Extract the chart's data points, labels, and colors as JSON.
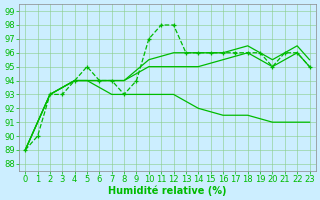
{
  "background_color": "#cceeff",
  "grid_color": "#88cc88",
  "line_color": "#00bb00",
  "xlabel": "Humidité relative (%)",
  "xlabel_fontsize": 7,
  "tick_fontsize": 6,
  "xlim": [
    -0.5,
    23.5
  ],
  "ylim": [
    87.5,
    99.5
  ],
  "yticks": [
    88,
    89,
    90,
    91,
    92,
    93,
    94,
    95,
    96,
    97,
    98,
    99
  ],
  "xticks": [
    0,
    1,
    2,
    3,
    4,
    5,
    6,
    7,
    8,
    9,
    10,
    11,
    12,
    13,
    14,
    15,
    16,
    17,
    18,
    19,
    20,
    21,
    22,
    23
  ],
  "series": [
    {
      "x": [
        0,
        1,
        2,
        3,
        4,
        5,
        6,
        7,
        8,
        9,
        10,
        11,
        12,
        13,
        14,
        15,
        16,
        17,
        18,
        19,
        20,
        21,
        22,
        23
      ],
      "y": [
        89,
        90,
        93,
        93,
        94,
        95,
        94,
        94,
        93,
        94,
        97,
        98,
        98,
        96,
        96,
        96,
        96,
        96,
        96,
        96,
        95,
        96,
        96,
        95
      ],
      "marker": "+",
      "linestyle": "--"
    },
    {
      "x": [
        0,
        2,
        4,
        6,
        8,
        10,
        12,
        14,
        16,
        18,
        20,
        22,
        23
      ],
      "y": [
        89,
        93,
        94,
        94,
        94,
        95,
        95,
        95,
        95.5,
        96,
        95,
        96,
        95
      ],
      "marker": null,
      "linestyle": "-"
    },
    {
      "x": [
        0,
        2,
        4,
        6,
        8,
        10,
        12,
        14,
        16,
        18,
        20,
        22,
        23
      ],
      "y": [
        89,
        93,
        94,
        94,
        94,
        95.5,
        96,
        96,
        96,
        96.5,
        95.5,
        96.5,
        95.5
      ],
      "marker": null,
      "linestyle": "-"
    },
    {
      "x": [
        0,
        2,
        4,
        5,
        6,
        7,
        8,
        10,
        12,
        14,
        16,
        18,
        20,
        22,
        23
      ],
      "y": [
        89,
        93,
        94,
        94,
        93.5,
        93,
        93,
        93,
        93,
        92,
        91.5,
        91.5,
        91,
        91,
        91
      ],
      "marker": null,
      "linestyle": "-"
    }
  ]
}
